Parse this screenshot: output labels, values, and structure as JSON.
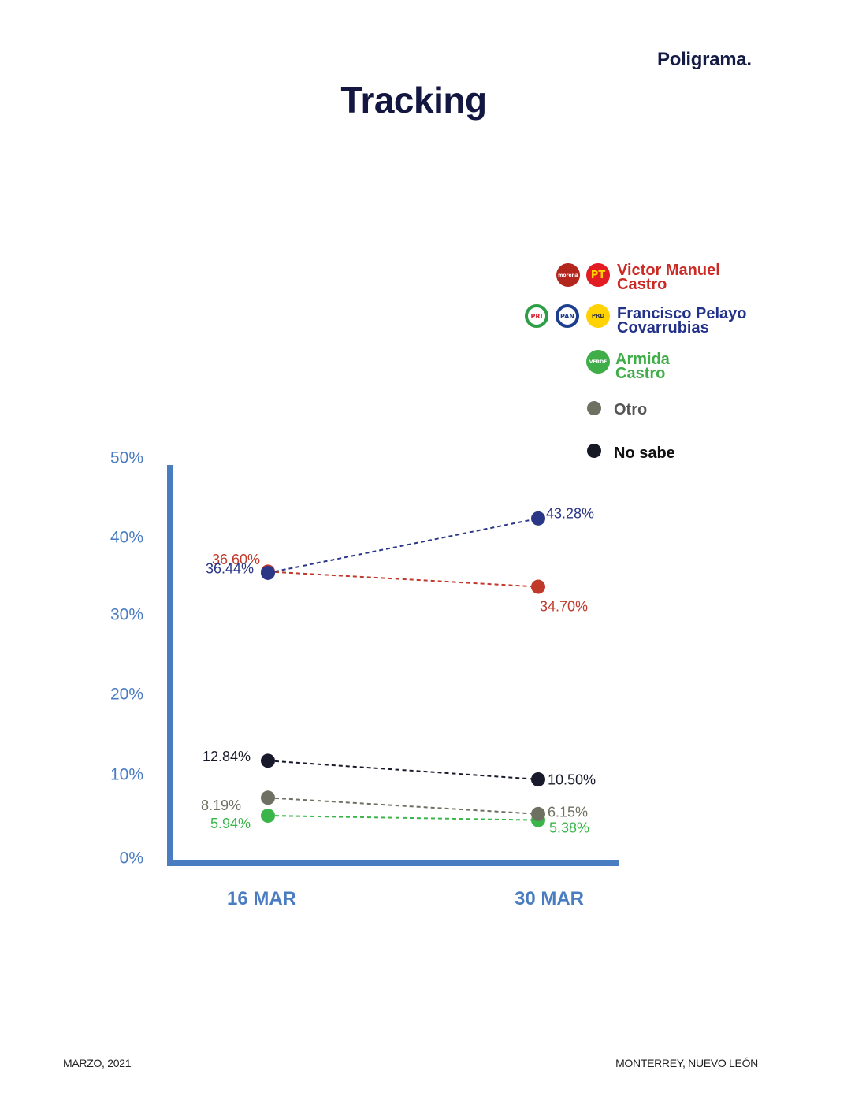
{
  "brand": "Poligrama.",
  "title": "Tracking",
  "footer": {
    "left": "MARZO, 2021",
    "right": "MONTERREY, NUEVO LEÓN"
  },
  "legend": [
    {
      "label": "Victor Manuel\nCastro",
      "color": "#cc2a24",
      "logos": [
        "morena",
        "PT"
      ]
    },
    {
      "label": "Francisco Pelayo\nCovarrubias",
      "color": "#22318a",
      "logos": [
        "PRI",
        "PAN",
        "PRD"
      ]
    },
    {
      "label": "Armida\nCastro",
      "color": "#3fae49",
      "logos": [
        "VERDE"
      ]
    },
    {
      "label": "Otro",
      "color": "#555555",
      "dot_color": "#6e7062"
    },
    {
      "label": "No sabe",
      "color": "#111111",
      "dot_color": "#161825"
    }
  ],
  "chart_data": {
    "type": "line",
    "categories": [
      "16 MAR",
      "30 MAR"
    ],
    "ylim": [
      0,
      50
    ],
    "yticks": [
      "0%",
      "10%",
      "20%",
      "30%",
      "40%",
      "50%"
    ],
    "series": [
      {
        "name": "Victor Manuel Castro",
        "values": [
          36.6,
          34.7
        ],
        "labels": [
          "36.60%",
          "34.70%"
        ],
        "color": "#c0392b"
      },
      {
        "name": "Francisco Pelayo Covarrubias",
        "values": [
          36.44,
          43.28
        ],
        "labels": [
          "36.44%",
          "43.28%"
        ],
        "color": "#2a3787"
      },
      {
        "name": "Armida Castro",
        "values": [
          5.94,
          5.38
        ],
        "labels": [
          "5.94%",
          "5.38%"
        ],
        "color": "#3ab54a"
      },
      {
        "name": "Otro",
        "values": [
          8.19,
          6.15
        ],
        "labels": [
          "8.19%",
          "6.15%"
        ],
        "color": "#6e7062"
      },
      {
        "name": "No sabe",
        "values": [
          12.84,
          10.5
        ],
        "labels": [
          "12.84%",
          "10.50%"
        ],
        "color": "#181a2b"
      }
    ],
    "axis_color": "#4a7cc2",
    "legend_position": "top-right",
    "grid": false
  }
}
